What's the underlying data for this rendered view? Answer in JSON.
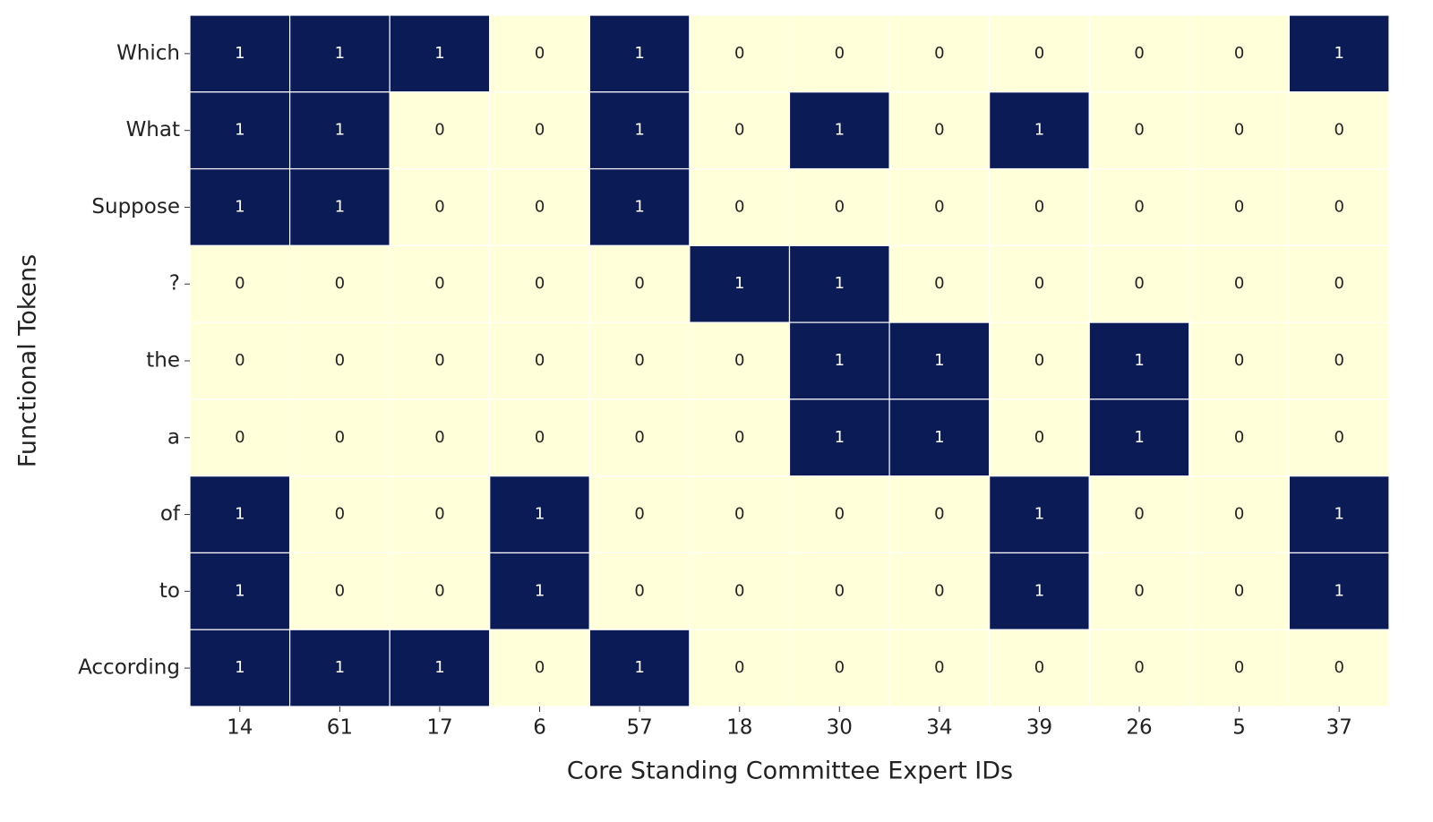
{
  "chart_data": {
    "type": "heatmap",
    "x_label": "Core Standing Committee Expert IDs",
    "y_label": "Functional Tokens",
    "x_categories": [
      "14",
      "61",
      "17",
      "6",
      "57",
      "18",
      "30",
      "34",
      "39",
      "26",
      "5",
      "37"
    ],
    "y_categories": [
      "Which",
      "What",
      "Suppose",
      "?",
      "the",
      "a",
      "of",
      "to",
      "According"
    ],
    "values": [
      [
        1,
        1,
        1,
        0,
        1,
        0,
        0,
        0,
        0,
        0,
        0,
        1
      ],
      [
        1,
        1,
        0,
        0,
        1,
        0,
        1,
        0,
        1,
        0,
        0,
        0
      ],
      [
        1,
        1,
        0,
        0,
        1,
        0,
        0,
        0,
        0,
        0,
        0,
        0
      ],
      [
        0,
        0,
        0,
        0,
        0,
        1,
        1,
        0,
        0,
        0,
        0,
        0
      ],
      [
        0,
        0,
        0,
        0,
        0,
        0,
        1,
        1,
        0,
        1,
        0,
        0
      ],
      [
        0,
        0,
        0,
        0,
        0,
        0,
        1,
        1,
        0,
        1,
        0,
        0
      ],
      [
        1,
        0,
        0,
        1,
        0,
        0,
        0,
        0,
        1,
        0,
        0,
        1
      ],
      [
        1,
        0,
        0,
        1,
        0,
        0,
        0,
        0,
        1,
        0,
        0,
        1
      ],
      [
        1,
        1,
        1,
        0,
        1,
        0,
        0,
        0,
        0,
        0,
        0,
        0
      ]
    ],
    "colorscale": [
      "#ffffd9",
      "#0b1b55"
    ],
    "zlim": [
      0,
      1
    ]
  }
}
